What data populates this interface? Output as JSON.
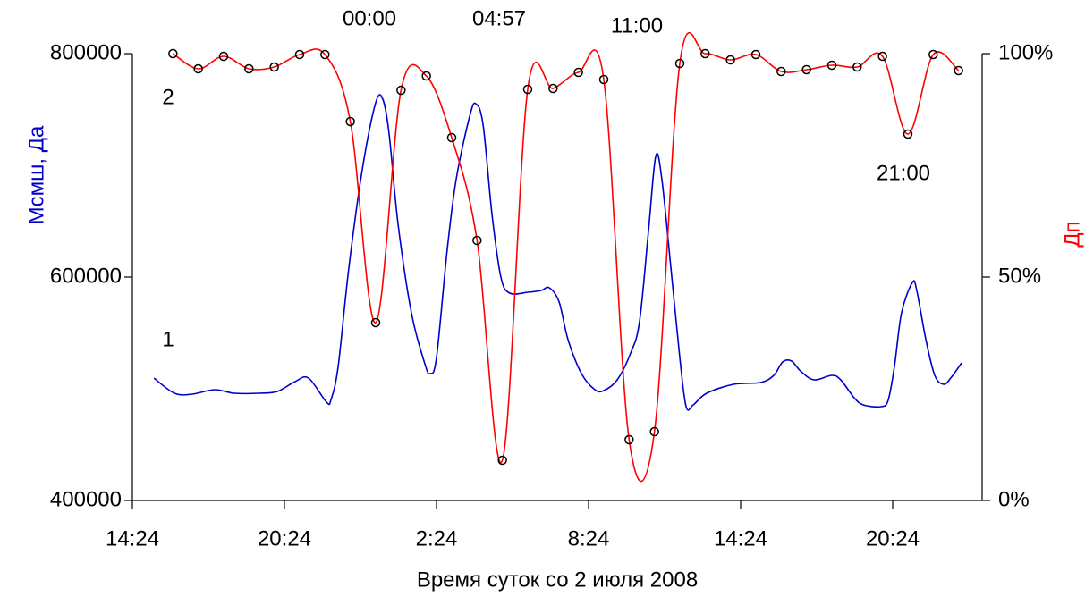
{
  "chart_data": {
    "type": "line",
    "xlabel": "Время суток со 2 июля 2008",
    "ylabel": "Mсмш, Да",
    "y2label": "Дп",
    "xlim": [
      14.4,
      47.93
    ],
    "xticks": [
      {
        "value": 14.4,
        "label": "14:24"
      },
      {
        "value": 20.4,
        "label": "20:24"
      },
      {
        "value": 26.4,
        "label": "2:24"
      },
      {
        "value": 32.4,
        "label": "8:24"
      },
      {
        "value": 38.4,
        "label": "14:24"
      },
      {
        "value": 44.4,
        "label": "20:24"
      }
    ],
    "ylim": [
      400000,
      800000
    ],
    "yticks": [
      400000,
      600000,
      800000
    ],
    "y2lim": [
      0,
      100
    ],
    "y2ticks": [
      {
        "value": 0,
        "label": "0%"
      },
      {
        "value": 50,
        "label": "50%"
      },
      {
        "value": 100,
        "label": "100%"
      }
    ],
    "annotations": [
      "00:00",
      "04:57",
      "11:00",
      "21:00"
    ],
    "series": [
      {
        "name": "1",
        "color": "#0000cc",
        "markers": false,
        "x": [
          15.25,
          16.06,
          16.76,
          17.65,
          18.42,
          19.41,
          20.12,
          20.82,
          21.35,
          22.06,
          22.24,
          22.52,
          22.94,
          23.47,
          24.0,
          24.28,
          24.53,
          24.88,
          25.41,
          25.94,
          26.15,
          26.4,
          26.82,
          27.18,
          27.71,
          27.95,
          28.24,
          28.59,
          28.94,
          29.29,
          30.0,
          30.53,
          30.85,
          31.24,
          31.59,
          32.12,
          32.65,
          33.0,
          33.53,
          34.06,
          34.41,
          34.76,
          35.05,
          35.29,
          35.65,
          36.0,
          36.25,
          36.53,
          37.06,
          38.12,
          39.18,
          39.71,
          40.06,
          40.41,
          40.76,
          41.29,
          42.0,
          42.35,
          42.88,
          43.24,
          43.94,
          44.22,
          44.47,
          44.75,
          45.18,
          45.35,
          45.71,
          46.06,
          46.41,
          46.69,
          47.12
        ],
        "values": [
          509600,
          496000,
          495200,
          499200,
          496000,
          496000,
          497600,
          506400,
          509600,
          488000,
          490400,
          520000,
          608000,
          696000,
          756000,
          759200,
          728000,
          648000,
          568000,
          522400,
          513600,
          528000,
          624000,
          688000,
          744000,
          755200,
          736000,
          656000,
          600000,
          585600,
          586400,
          588000,
          590400,
          577600,
          544000,
          513600,
          499200,
          498400,
          508000,
          532000,
          560000,
          640000,
          708000,
          688000,
          608000,
          528000,
          484000,
          485600,
          496000,
          504000,
          505600,
          512000,
          524000,
          524800,
          516000,
          508000,
          512000,
          508000,
          492000,
          485600,
          484000,
          489600,
          520000,
          568000,
          595200,
          588000,
          544000,
          512000,
          504000,
          509600,
          523200
        ]
      },
      {
        "name": "2",
        "color": "#ff0000",
        "axis": "y2",
        "markers": true,
        "x": [
          16,
          17,
          18,
          19,
          20,
          21,
          22,
          23,
          24,
          25,
          26,
          27,
          28,
          29,
          30,
          31,
          32,
          33,
          34,
          35,
          36,
          37,
          38,
          39,
          40,
          41,
          42,
          43,
          44,
          45,
          46,
          47
        ],
        "values": [
          100,
          96.6,
          99.4,
          96.6,
          97,
          99.8,
          99.8,
          84.8,
          39.8,
          91.8,
          95,
          81.2,
          58.2,
          9,
          92,
          92.2,
          95.8,
          94.2,
          13.6,
          15.4,
          97.8,
          100,
          98.6,
          99.8,
          96,
          96.4,
          97.4,
          97,
          99.4,
          82,
          99.8,
          96.2
        ]
      }
    ]
  }
}
